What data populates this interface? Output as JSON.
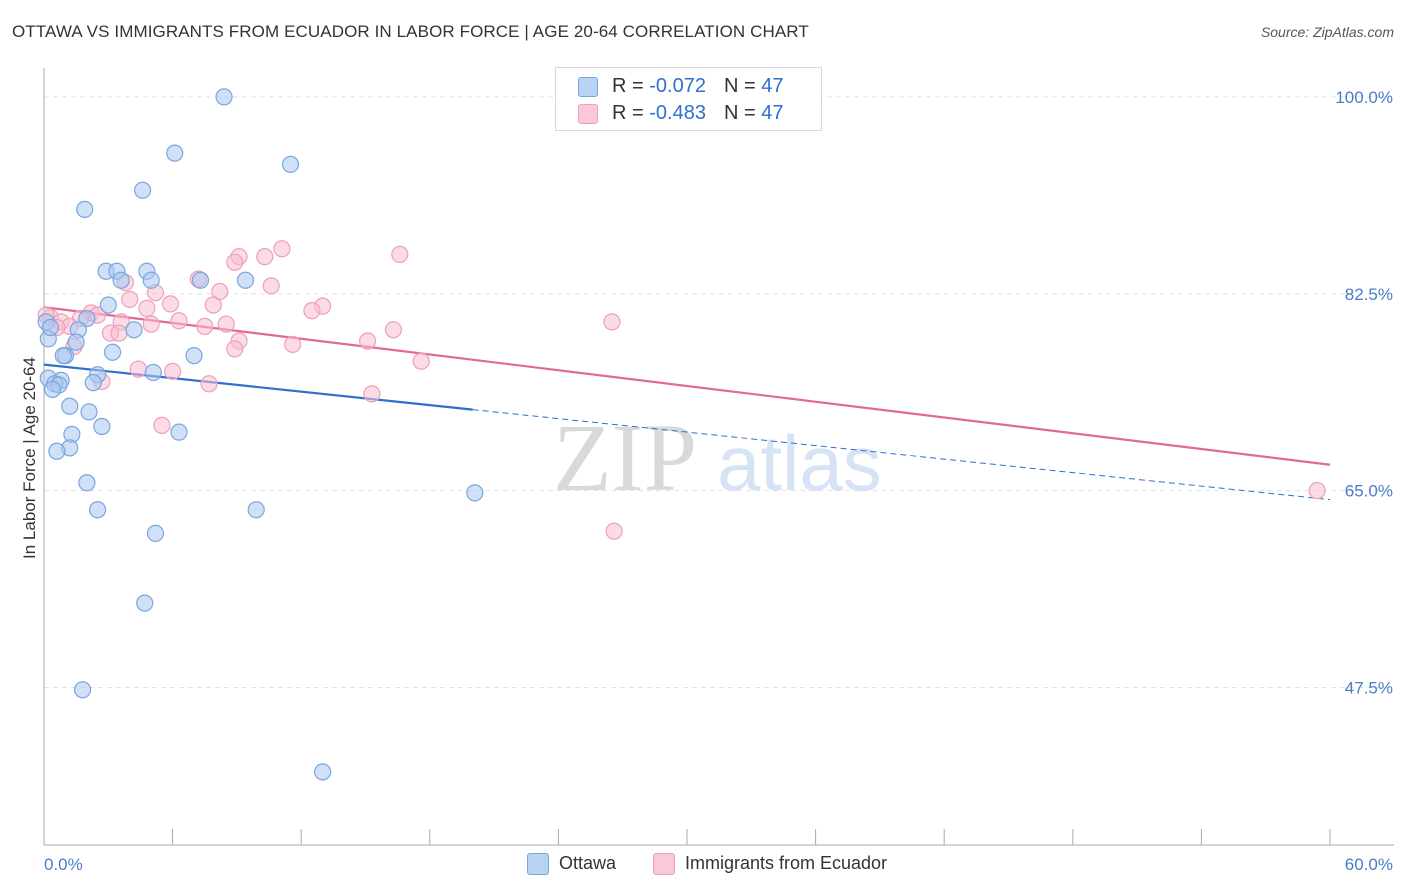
{
  "title": "OTTAWA VS IMMIGRANTS FROM ECUADOR IN LABOR FORCE | AGE 20-64 CORRELATION CHART",
  "source": "Source: ZipAtlas.com",
  "watermark": {
    "zip": "ZIP",
    "atlas": "atlas"
  },
  "legend": {
    "ottawa": {
      "r_label": "R = ",
      "r_value": "-0.072",
      "n_label": "N = ",
      "n_value": "47"
    },
    "ecuador": {
      "r_label": "R = ",
      "r_value": "-0.483",
      "n_label": "N = ",
      "n_value": "47"
    }
  },
  "bottom_legend": {
    "ottawa": "Ottawa",
    "ecuador": "Immigrants from Ecuador"
  },
  "colors": {
    "ottawa_fill": "#a9c8f0",
    "ottawa_stroke": "#7aa6e0",
    "ottawa_line": "#2f6fcf",
    "ecuador_fill": "#f7bdd0",
    "ecuador_stroke": "#eea0bb",
    "ecuador_line": "#e46894",
    "axis_text": "#4a7cc9",
    "grid": "#e2e2e2"
  },
  "chart_data": {
    "type": "scatter",
    "title": "OTTAWA VS IMMIGRANTS FROM ECUADOR IN LABOR FORCE | AGE 20-64 CORRELATION CHART",
    "xlabel": "",
    "ylabel": "In Labor Force | Age 20-64",
    "xlim": [
      0,
      60
    ],
    "ylim": [
      33.5,
      101.5
    ],
    "x_tick_labels": [
      "0.0%",
      "60.0%"
    ],
    "y_ticks": [
      47.5,
      65.0,
      82.5,
      100.0
    ],
    "y_tick_labels": [
      "47.5%",
      "65.0%",
      "82.5%",
      "100.0%"
    ],
    "grid": true,
    "series": [
      {
        "name": "Ottawa",
        "points": [
          [
            8.4,
            100.0
          ],
          [
            6.1,
            95.0
          ],
          [
            11.5,
            94.0
          ],
          [
            4.6,
            91.7
          ],
          [
            1.9,
            90.0
          ],
          [
            2.9,
            84.5
          ],
          [
            3.4,
            84.5
          ],
          [
            4.8,
            84.5
          ],
          [
            3.6,
            83.7
          ],
          [
            5.0,
            83.7
          ],
          [
            7.3,
            83.7
          ],
          [
            9.4,
            83.7
          ],
          [
            3.0,
            81.5
          ],
          [
            2.0,
            80.3
          ],
          [
            1.6,
            79.3
          ],
          [
            4.2,
            79.3
          ],
          [
            0.2,
            78.5
          ],
          [
            1.5,
            78.2
          ],
          [
            3.2,
            77.3
          ],
          [
            1.0,
            77.0
          ],
          [
            0.9,
            77.0
          ],
          [
            7.0,
            77.0
          ],
          [
            5.1,
            75.5
          ],
          [
            2.5,
            75.3
          ],
          [
            0.2,
            75.0
          ],
          [
            0.8,
            74.8
          ],
          [
            2.3,
            74.6
          ],
          [
            0.5,
            74.5
          ],
          [
            0.7,
            74.4
          ],
          [
            0.4,
            74.0
          ],
          [
            1.2,
            72.5
          ],
          [
            2.1,
            72.0
          ],
          [
            2.7,
            70.7
          ],
          [
            6.3,
            70.2
          ],
          [
            1.3,
            70.0
          ],
          [
            1.2,
            68.8
          ],
          [
            0.6,
            68.5
          ],
          [
            2.0,
            65.7
          ],
          [
            20.1,
            64.8
          ],
          [
            2.5,
            63.3
          ],
          [
            9.9,
            63.3
          ],
          [
            5.2,
            61.2
          ],
          [
            4.7,
            55.0
          ],
          [
            1.8,
            47.3
          ],
          [
            13.0,
            40.0
          ],
          [
            0.1,
            80.0
          ],
          [
            0.3,
            79.5
          ]
        ],
        "trend": {
          "x": [
            0,
            20
          ],
          "y": [
            76.2,
            72.2
          ],
          "dashed_extension_to": [
            60,
            64.2
          ]
        }
      },
      {
        "name": "Immigrants from Ecuador",
        "points": [
          [
            11.1,
            86.5
          ],
          [
            16.6,
            86.0
          ],
          [
            10.3,
            85.8
          ],
          [
            9.1,
            85.8
          ],
          [
            8.9,
            85.3
          ],
          [
            7.2,
            83.8
          ],
          [
            5.2,
            82.6
          ],
          [
            3.8,
            83.5
          ],
          [
            8.2,
            82.7
          ],
          [
            10.6,
            83.2
          ],
          [
            4.0,
            82.0
          ],
          [
            5.9,
            81.6
          ],
          [
            7.9,
            81.5
          ],
          [
            13.0,
            81.4
          ],
          [
            12.5,
            81.0
          ],
          [
            4.8,
            81.2
          ],
          [
            2.2,
            80.8
          ],
          [
            2.5,
            80.6
          ],
          [
            1.7,
            80.3
          ],
          [
            3.6,
            80.0
          ],
          [
            6.3,
            80.1
          ],
          [
            0.3,
            80.4
          ],
          [
            0.8,
            80.0
          ],
          [
            1.2,
            79.6
          ],
          [
            5.0,
            79.8
          ],
          [
            7.5,
            79.6
          ],
          [
            8.5,
            79.8
          ],
          [
            16.3,
            79.3
          ],
          [
            0.6,
            79.5
          ],
          [
            3.1,
            79.0
          ],
          [
            3.5,
            79.0
          ],
          [
            9.1,
            78.3
          ],
          [
            11.6,
            78.0
          ],
          [
            15.1,
            78.3
          ],
          [
            1.4,
            77.8
          ],
          [
            8.9,
            77.6
          ],
          [
            17.6,
            76.5
          ],
          [
            4.4,
            75.8
          ],
          [
            6.0,
            75.6
          ],
          [
            2.7,
            74.7
          ],
          [
            7.7,
            74.5
          ],
          [
            15.3,
            73.6
          ],
          [
            5.5,
            70.8
          ],
          [
            26.5,
            80.0
          ],
          [
            59.4,
            65.0
          ],
          [
            26.6,
            61.4
          ],
          [
            0.1,
            80.6
          ]
        ],
        "trend": {
          "x": [
            0,
            60
          ],
          "y": [
            81.3,
            67.3
          ]
        }
      }
    ]
  }
}
